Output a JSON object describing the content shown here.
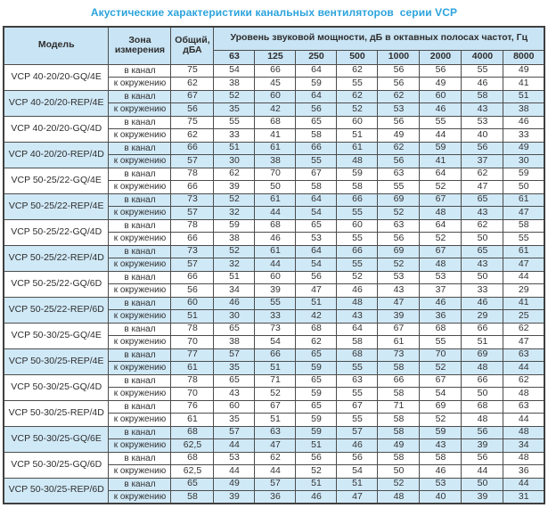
{
  "title": "Акустические характеристики канальных вентиляторов  серии VCP",
  "colors": {
    "title": "#2BA3DC",
    "header_bg": "#C9E4F4",
    "shaded_row_bg": "#D0E9F7",
    "border": "#4D4D4D"
  },
  "table": {
    "headers": {
      "model": "Модель",
      "zone": "Зона измерения",
      "total": "Общий, дБА",
      "bands_group": "Уровень звуковой мощности, дБ в октавных полосах частот, Гц"
    },
    "frequencies": [
      "63",
      "125",
      "250",
      "500",
      "1000",
      "2000",
      "4000",
      "8000"
    ],
    "zone_labels": {
      "duct": "в канал",
      "ambient": "к окружению"
    },
    "groups": [
      {
        "model": "VCP 40-20/20-GQ/4E",
        "shaded": false,
        "rows": [
          {
            "zone": "в канал",
            "total": "75",
            "bands": [
              54,
              66,
              64,
              62,
              56,
              56,
              55,
              49
            ]
          },
          {
            "zone": "к окружению",
            "total": "62",
            "bands": [
              38,
              45,
              59,
              55,
              56,
              49,
              46,
              41
            ]
          }
        ]
      },
      {
        "model": "VCP 40-20/20-REP/4E",
        "shaded": true,
        "rows": [
          {
            "zone": "в канал",
            "total": "67",
            "bands": [
              52,
              60,
              64,
              62,
              62,
              60,
              58,
              51
            ]
          },
          {
            "zone": "к окружению",
            "total": "56",
            "bands": [
              35,
              42,
              56,
              52,
              53,
              46,
              43,
              38
            ]
          }
        ]
      },
      {
        "model": "VCP 40-20/20-GQ/4D",
        "shaded": false,
        "rows": [
          {
            "zone": "в канал",
            "total": "75",
            "bands": [
              55,
              68,
              65,
              60,
              56,
              55,
              53,
              46
            ]
          },
          {
            "zone": "к окружению",
            "total": "62",
            "bands": [
              33,
              41,
              58,
              51,
              49,
              44,
              40,
              33
            ]
          }
        ]
      },
      {
        "model": "VCP 40-20/20-REP/4D",
        "shaded": true,
        "rows": [
          {
            "zone": "в канал",
            "total": "66",
            "bands": [
              51,
              61,
              66,
              61,
              62,
              59,
              56,
              49
            ]
          },
          {
            "zone": "к окружению",
            "total": "57",
            "bands": [
              30,
              38,
              55,
              48,
              56,
              41,
              37,
              30
            ]
          }
        ]
      },
      {
        "model": "VCP 50-25/22-GQ/4E",
        "shaded": false,
        "rows": [
          {
            "zone": "в канал",
            "total": "78",
            "bands": [
              62,
              70,
              67,
              59,
              63,
              64,
              62,
              59
            ]
          },
          {
            "zone": "к окружению",
            "total": "66",
            "bands": [
              39,
              50,
              58,
              58,
              55,
              52,
              47,
              50
            ]
          }
        ]
      },
      {
        "model": "VCP 50-25/22-REP/4E",
        "shaded": true,
        "rows": [
          {
            "zone": "в канал",
            "total": "73",
            "bands": [
              52,
              61,
              64,
              66,
              69,
              67,
              65,
              61
            ]
          },
          {
            "zone": "к окружению",
            "total": "57",
            "bands": [
              32,
              44,
              54,
              55,
              52,
              48,
              43,
              47
            ]
          }
        ]
      },
      {
        "model": "VCP 50-25/22-GQ/4D",
        "shaded": false,
        "rows": [
          {
            "zone": "в канал",
            "total": "78",
            "bands": [
              59,
              68,
              65,
              60,
              63,
              64,
              62,
              58
            ]
          },
          {
            "zone": "к окружению",
            "total": "66",
            "bands": [
              38,
              46,
              53,
              55,
              56,
              52,
              50,
              55
            ]
          }
        ]
      },
      {
        "model": "VCP 50-25/22-REP/4D",
        "shaded": true,
        "rows": [
          {
            "zone": "в канал",
            "total": "73",
            "bands": [
              52,
              61,
              64,
              66,
              69,
              67,
              65,
              61
            ]
          },
          {
            "zone": "к окружению",
            "total": "57",
            "bands": [
              32,
              44,
              54,
              55,
              52,
              48,
              43,
              47
            ]
          }
        ]
      },
      {
        "model": "VCP 50-25/22-GQ/6D",
        "shaded": false,
        "rows": [
          {
            "zone": "в канал",
            "total": "66",
            "bands": [
              51,
              60,
              56,
              52,
              53,
              53,
              50,
              44
            ]
          },
          {
            "zone": "к окружению",
            "total": "56",
            "bands": [
              34,
              39,
              47,
              46,
              43,
              37,
              33,
              29
            ]
          }
        ]
      },
      {
        "model": "VCP 50-25/22-REP/6D",
        "shaded": true,
        "rows": [
          {
            "zone": "в канал",
            "total": "60",
            "bands": [
              46,
              55,
              51,
              48,
              47,
              46,
              46,
              41
            ]
          },
          {
            "zone": "к окружению",
            "total": "51",
            "bands": [
              30,
              33,
              42,
              43,
              39,
              36,
              29,
              25
            ]
          }
        ]
      },
      {
        "model": "VCP 50-30/25-GQ/4E",
        "shaded": false,
        "rows": [
          {
            "zone": "в канал",
            "total": "78",
            "bands": [
              65,
              73,
              68,
              64,
              67,
              68,
              66,
              62
            ]
          },
          {
            "zone": "к окружению",
            "total": "70",
            "bands": [
              38,
              54,
              62,
              58,
              61,
              55,
              51,
              47
            ]
          }
        ]
      },
      {
        "model": "VCP 50-30/25-REP/4E",
        "shaded": true,
        "rows": [
          {
            "zone": "в канал",
            "total": "77",
            "bands": [
              57,
              66,
              65,
              68,
              73,
              70,
              69,
              63
            ]
          },
          {
            "zone": "к окружению",
            "total": "61",
            "bands": [
              35,
              51,
              59,
              55,
              58,
              52,
              48,
              44
            ]
          }
        ]
      },
      {
        "model": "VCP 50-30/25-GQ/4D",
        "shaded": false,
        "rows": [
          {
            "zone": "в канал",
            "total": "78",
            "bands": [
              65,
              71,
              65,
              63,
              66,
              67,
              66,
              62
            ]
          },
          {
            "zone": "к окружению",
            "total": "70",
            "bands": [
              43,
              52,
              59,
              55,
              58,
              54,
              50,
              48
            ]
          }
        ]
      },
      {
        "model": "VCP 50-30/25-REP/4D",
        "shaded": false,
        "rows": [
          {
            "zone": "в канал",
            "total": "76",
            "bands": [
              60,
              67,
              65,
              67,
              71,
              69,
              68,
              63
            ]
          },
          {
            "zone": "к окружению",
            "total": "61",
            "bands": [
              35,
              51,
              59,
              55,
              58,
              52,
              48,
              44
            ]
          }
        ]
      },
      {
        "model": "VCP 50-30/25-GQ/6E",
        "shaded": true,
        "rows": [
          {
            "zone": "в канал",
            "total": "68",
            "bands": [
              57,
              63,
              59,
              57,
              58,
              59,
              56,
              48
            ]
          },
          {
            "zone": "к окружению",
            "total": "62,5",
            "bands": [
              44,
              47,
              51,
              46,
              49,
              43,
              39,
              34
            ]
          }
        ]
      },
      {
        "model": "VCP 50-30/25-GQ/6D",
        "shaded": false,
        "rows": [
          {
            "zone": "в канал",
            "total": "68",
            "bands": [
              53,
              62,
              56,
              56,
              58,
              58,
              56,
              48
            ]
          },
          {
            "zone": "к окружению",
            "total": "62,5",
            "bands": [
              44,
              44,
              52,
              54,
              50,
              46,
              44,
              36
            ]
          }
        ]
      },
      {
        "model": "VCP 50-30/25-REP/6D",
        "shaded": true,
        "rows": [
          {
            "zone": "в канал",
            "total": "65",
            "bands": [
              49,
              57,
              51,
              51,
              52,
              53,
              50,
              44
            ]
          },
          {
            "zone": "к окружению",
            "total": "58",
            "bands": [
              39,
              36,
              46,
              47,
              48,
              40,
              39,
              31
            ]
          }
        ]
      }
    ]
  }
}
